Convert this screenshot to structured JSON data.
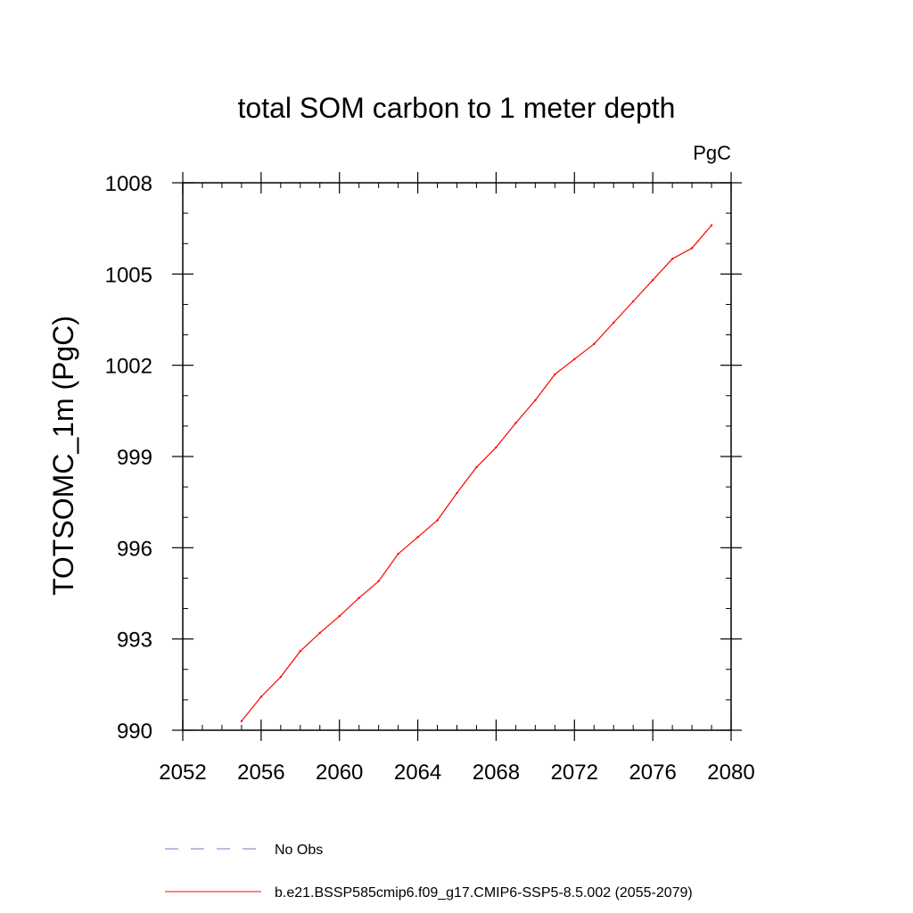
{
  "chart_data": {
    "type": "line",
    "title": "total SOM carbon to 1 meter depth",
    "units_label": "PgC",
    "xlabel": "",
    "ylabel": "TOTSOMC_1m  (PgC)",
    "xlim": [
      2052,
      2080
    ],
    "ylim": [
      990,
      1008
    ],
    "x_ticks": [
      "2052",
      "2056",
      "2060",
      "2064",
      "2068",
      "2072",
      "2076",
      "2080"
    ],
    "y_ticks": [
      "990",
      "993",
      "996",
      "999",
      "1002",
      "1005",
      "1008"
    ],
    "grid": false,
    "legend_position": "bottom",
    "legend": [
      {
        "name": "No Obs",
        "color": "#7b73c8",
        "style": "dashed"
      },
      {
        "name": "b.e21.BSSP585cmip6.f09_g17.CMIP6-SSP5-8.5.002 (2055-2079)",
        "color": "#ff0000",
        "style": "solid"
      }
    ],
    "series": [
      {
        "name": "b.e21.BSSP585cmip6.f09_g17.CMIP6-SSP5-8.5.002 (2055-2079)",
        "color": "#ff0000",
        "x": [
          2055,
          2056,
          2057,
          2058,
          2059,
          2060,
          2061,
          2062,
          2063,
          2064,
          2065,
          2066,
          2067,
          2068,
          2069,
          2070,
          2071,
          2072,
          2073,
          2074,
          2075,
          2076,
          2077,
          2078,
          2079
        ],
        "y": [
          990.3,
          991.1,
          991.75,
          992.6,
          993.2,
          993.75,
          994.35,
          994.9,
          995.8,
          996.35,
          996.9,
          997.8,
          998.65,
          999.3,
          1000.1,
          1000.85,
          1001.7,
          1002.2,
          1002.7,
          1003.4,
          1004.1,
          1004.8,
          1005.5,
          1005.85,
          1006.6
        ]
      }
    ]
  }
}
